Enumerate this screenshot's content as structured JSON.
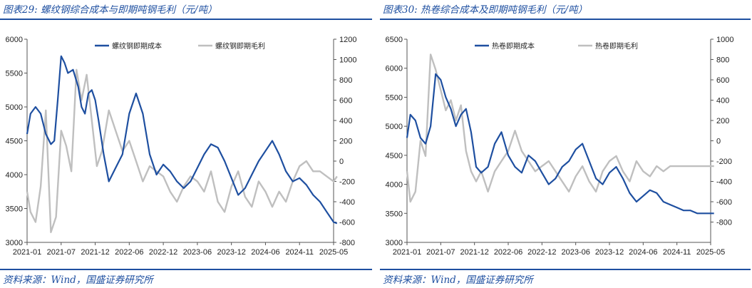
{
  "charts": [
    {
      "title": "图表29:  螺纹钢综合成本与即期吨钢毛利（元/吨）",
      "source": "资料来源：Wind，国盛证券研究所",
      "chart_data": {
        "type": "line",
        "xticks": [
          "2021-01",
          "2021-07",
          "2021-12",
          "2022-06",
          "2022-12",
          "2023-06",
          "2023-12",
          "2024-06",
          "2024-11",
          "2025-05"
        ],
        "ylim_left": [
          3000,
          6000
        ],
        "yticks_left": [
          3000,
          3500,
          4000,
          4500,
          5000,
          5500,
          6000
        ],
        "ylim_right": [
          -800,
          1200
        ],
        "yticks_right": [
          -800,
          -600,
          -400,
          -200,
          0,
          200,
          400,
          600,
          800,
          1000,
          1200
        ],
        "legend_position": "top",
        "series": [
          {
            "name": "螺纹钢即期成本",
            "axis": "left",
            "color": "#1e4fa0",
            "x": [
              0,
              0.1,
              0.25,
              0.4,
              0.55,
              0.7,
              0.8,
              0.9,
              1.0,
              1.1,
              1.2,
              1.35,
              1.5,
              1.6,
              1.7,
              1.8,
              1.9,
              2.0,
              2.1,
              2.25,
              2.4,
              2.6,
              2.8,
              3.0,
              3.2,
              3.4,
              3.6,
              3.8,
              4.0,
              4.2,
              4.4,
              4.6,
              4.8,
              5.0,
              5.2,
              5.4,
              5.6,
              5.8,
              6.0,
              6.2,
              6.4,
              6.6,
              6.8,
              7.0,
              7.2,
              7.4,
              7.6,
              7.8,
              8.0,
              8.2,
              8.4,
              8.6,
              8.8,
              9.0,
              9.1
            ],
            "values": [
              4600,
              4900,
              5000,
              4900,
              4600,
              4450,
              4500,
              5100,
              5750,
              5650,
              5500,
              5550,
              5300,
              5000,
              4900,
              5200,
              5250,
              5100,
              4800,
              4300,
              3900,
              4100,
              4300,
              4900,
              5200,
              4900,
              4300,
              4000,
              4150,
              4050,
              3900,
              3800,
              3900,
              4100,
              4300,
              4450,
              4400,
              4200,
              3950,
              3700,
              3800,
              4000,
              4200,
              4350,
              4500,
              4300,
              4050,
              3900,
              3950,
              3850,
              3700,
              3600,
              3450,
              3300,
              3280
            ],
            "ticks_are_indices": true
          },
          {
            "name": "螺纹钢即期毛利",
            "axis": "right",
            "color": "#bfbfbf",
            "x": [
              0,
              0.1,
              0.25,
              0.4,
              0.55,
              0.7,
              0.85,
              1.0,
              1.15,
              1.3,
              1.45,
              1.6,
              1.75,
              1.9,
              2.05,
              2.2,
              2.4,
              2.6,
              2.8,
              3.0,
              3.2,
              3.4,
              3.6,
              3.8,
              4.0,
              4.2,
              4.4,
              4.6,
              4.8,
              5.0,
              5.2,
              5.4,
              5.6,
              5.8,
              6.0,
              6.2,
              6.4,
              6.6,
              6.8,
              7.0,
              7.2,
              7.4,
              7.6,
              7.8,
              8.0,
              8.2,
              8.4,
              8.6,
              8.8,
              9.0,
              9.1
            ],
            "values": [
              -300,
              -500,
              -600,
              -250,
              500,
              -700,
              -550,
              300,
              150,
              -100,
              900,
              600,
              850,
              400,
              -50,
              100,
              500,
              300,
              100,
              200,
              0,
              -200,
              -50,
              -100,
              -150,
              -300,
              -400,
              -250,
              -150,
              -200,
              -300,
              -100,
              -400,
              -500,
              -250,
              -100,
              -350,
              -450,
              -200,
              -300,
              -450,
              -300,
              -400,
              -200,
              -50,
              0,
              -100,
              -100,
              -150,
              -200,
              -150
            ],
            "ticks_are_indices": true
          }
        ]
      }
    },
    {
      "title": "图表30:  热卷综合成本及即期吨钢毛利（元/吨）",
      "source": "资料来源：Wind，国盛证券研究所",
      "chart_data": {
        "type": "line",
        "xticks": [
          "2021-01",
          "2021-07",
          "2021-12",
          "2022-06",
          "2022-12",
          "2023-06",
          "2023-12",
          "2024-06",
          "2024-11",
          "2025-05"
        ],
        "ylim_left": [
          3000,
          6500
        ],
        "yticks_left": [
          3000,
          3500,
          4000,
          4500,
          5000,
          5500,
          6000,
          6500
        ],
        "ylim_right": [
          -1000,
          1000
        ],
        "yticks_right": [
          -800,
          -600,
          -400,
          -200,
          0,
          200,
          400,
          600,
          800,
          1000
        ],
        "legend_position": "top",
        "series": [
          {
            "name": "热卷即期成本",
            "axis": "left",
            "color": "#1e4fa0",
            "x": [
              0,
              0.1,
              0.25,
              0.4,
              0.55,
              0.7,
              0.85,
              1.0,
              1.15,
              1.3,
              1.45,
              1.6,
              1.75,
              1.9,
              2.05,
              2.2,
              2.4,
              2.6,
              2.8,
              3.0,
              3.2,
              3.4,
              3.6,
              3.8,
              4.0,
              4.2,
              4.4,
              4.6,
              4.8,
              5.0,
              5.2,
              5.4,
              5.6,
              5.8,
              6.0,
              6.2,
              6.4,
              6.6,
              6.8,
              7.0,
              7.2,
              7.4,
              7.6,
              7.8,
              8.0,
              8.2,
              8.4,
              8.6,
              8.8,
              9.0,
              9.1
            ],
            "values": [
              4800,
              5200,
              5100,
              4800,
              4700,
              5000,
              5900,
              5800,
              5500,
              5300,
              5000,
              5200,
              5300,
              4900,
              4300,
              4200,
              4300,
              4700,
              4900,
              4500,
              4300,
              4200,
              4500,
              4400,
              4200,
              4000,
              4100,
              4300,
              4400,
              4600,
              4700,
              4400,
              4100,
              4000,
              4200,
              4300,
              4100,
              3850,
              3700,
              3800,
              3900,
              3850,
              3700,
              3650,
              3600,
              3550,
              3550,
              3500,
              3500,
              3500,
              3500
            ],
            "ticks_are_indices": true
          },
          {
            "name": "热卷即期毛利",
            "axis": "right",
            "color": "#bfbfbf",
            "x": [
              0,
              0.1,
              0.25,
              0.4,
              0.55,
              0.7,
              0.85,
              1.0,
              1.15,
              1.3,
              1.45,
              1.6,
              1.75,
              1.9,
              2.05,
              2.2,
              2.4,
              2.6,
              2.8,
              3.0,
              3.2,
              3.4,
              3.6,
              3.8,
              4.0,
              4.2,
              4.4,
              4.6,
              4.8,
              5.0,
              5.2,
              5.4,
              5.6,
              5.8,
              6.0,
              6.2,
              6.4,
              6.6,
              6.8,
              7.0,
              7.2,
              7.4,
              7.6,
              7.8,
              8.0,
              8.2,
              8.4,
              8.6,
              8.8,
              9.0,
              9.1
            ],
            "values": [
              -300,
              -600,
              -500,
              0,
              -150,
              850,
              700,
              500,
              300,
              400,
              200,
              350,
              -100,
              -300,
              -400,
              -300,
              -500,
              -300,
              -200,
              -100,
              100,
              -100,
              -200,
              -300,
              -250,
              -200,
              -300,
              -400,
              -500,
              -350,
              -250,
              -400,
              -500,
              -300,
              -200,
              -150,
              -300,
              -400,
              -200,
              -300,
              -350,
              -250,
              -300,
              -250,
              -250,
              -250,
              -250,
              -250,
              -250,
              -250,
              -250
            ],
            "ticks_are_indices": true
          }
        ]
      }
    }
  ]
}
